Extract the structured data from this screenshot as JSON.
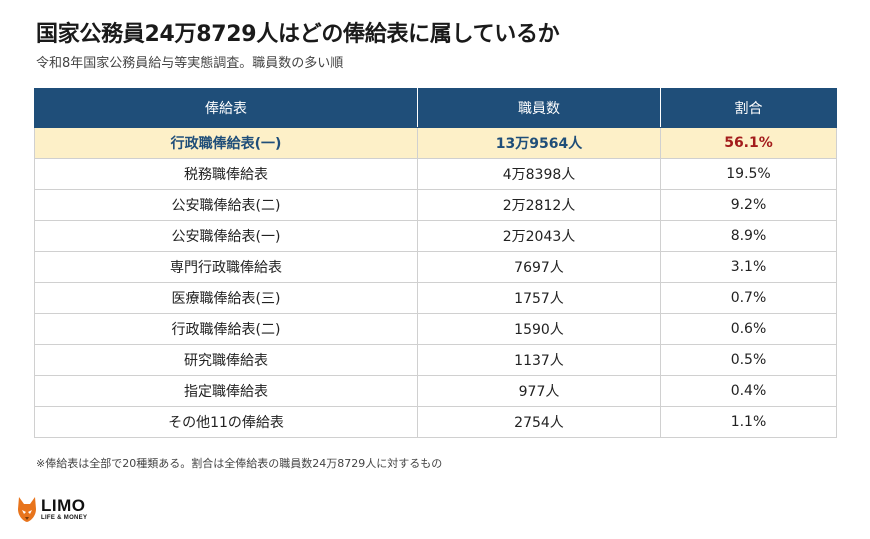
{
  "title": "国家公務員24万8729人はどの俸給表に属しているか",
  "subtitle": "令和8年国家公務員給与等実態調査。職員数の多い順",
  "table": {
    "headers": [
      "俸給表",
      "職員数",
      "割合"
    ],
    "rows": [
      {
        "name": "行政職俸給表(一)",
        "count": "13万9564人",
        "share": "56.1%",
        "highlight": true
      },
      {
        "name": "税務職俸給表",
        "count": "4万8398人",
        "share": "19.5%"
      },
      {
        "name": "公安職俸給表(二)",
        "count": "2万2812人",
        "share": "9.2%"
      },
      {
        "name": "公安職俸給表(一)",
        "count": "2万2043人",
        "share": "8.9%"
      },
      {
        "name": "専門行政職俸給表",
        "count": "7697人",
        "share": "3.1%"
      },
      {
        "name": "医療職俸給表(三)",
        "count": "1757人",
        "share": "0.7%"
      },
      {
        "name": "行政職俸給表(二)",
        "count": "1590人",
        "share": "0.6%"
      },
      {
        "name": "研究職俸給表",
        "count": "1137人",
        "share": "0.5%"
      },
      {
        "name": "指定職俸給表",
        "count": "977人",
        "share": "0.4%"
      },
      {
        "name": "その他11の俸給表",
        "count": "2754人",
        "share": "1.1%"
      }
    ]
  },
  "note": "※俸給表は全部で20種類ある。割合は全俸給表の職員数24万8729人に対するもの",
  "logo": {
    "main": "LIMO",
    "sub": "LIFE & MONEY",
    "icon": "fox-icon",
    "accent": "#e8741c"
  },
  "colors": {
    "header_bg": "#1f4e79",
    "highlight_bg": "#fdf0c8",
    "highlight_pct": "#a31c1c"
  }
}
